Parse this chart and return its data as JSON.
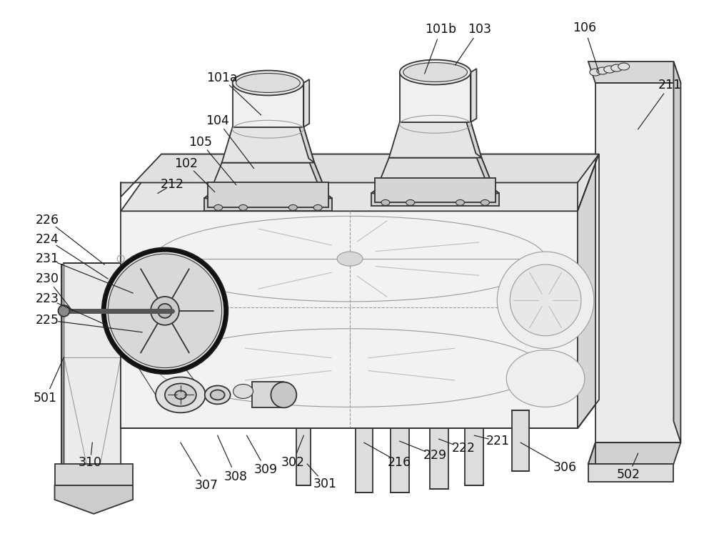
{
  "bg_color": "#ffffff",
  "lc": "#333333",
  "lc_dark": "#1a1a1a",
  "lc_light": "#999999",
  "fc_top": "#e8e8e8",
  "fc_front": "#f0f0f0",
  "fc_right": "#d8d8d8",
  "fc_dark": "#c0c0c0",
  "fc_white": "#fafafa",
  "figsize": [
    10,
    7.82
  ],
  "dpi": 100
}
